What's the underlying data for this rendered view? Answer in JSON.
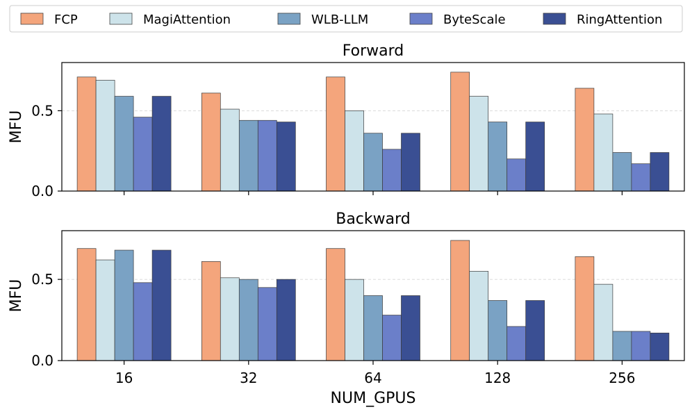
{
  "chart_data": {
    "type": "bar",
    "categories": [
      "16",
      "32",
      "64",
      "128",
      "256"
    ],
    "xlabel": "NUM_GPUS",
    "legend": {
      "placement": "top",
      "entries": [
        "FCP",
        "MagiAttention",
        "WLB-LLM",
        "ByteScale",
        "RingAttention"
      ]
    },
    "colors": [
      "#f4a57c",
      "#cde3ea",
      "#7aa2c4",
      "#6b7fc9",
      "#3a4f93"
    ],
    "panels": [
      {
        "title": "Forward",
        "ylabel": "MFU",
        "ylim": [
          0,
          0.8
        ],
        "yticks": [
          "0.0",
          "0.5"
        ],
        "grid": "horizontal dashed",
        "series": [
          {
            "name": "FCP",
            "values": [
              0.71,
              0.61,
              0.71,
              0.74,
              0.64
            ]
          },
          {
            "name": "MagiAttention",
            "values": [
              0.69,
              0.51,
              0.5,
              0.59,
              0.48
            ]
          },
          {
            "name": "WLB-LLM",
            "values": [
              0.59,
              0.44,
              0.36,
              0.43,
              0.24
            ]
          },
          {
            "name": "ByteScale",
            "values": [
              0.46,
              0.44,
              0.26,
              0.2,
              0.17
            ]
          },
          {
            "name": "RingAttention",
            "values": [
              0.59,
              0.43,
              0.36,
              0.43,
              0.24
            ]
          }
        ]
      },
      {
        "title": "Backward",
        "ylabel": "MFU",
        "ylim": [
          0,
          0.8
        ],
        "yticks": [
          "0.0",
          "0.5"
        ],
        "grid": "horizontal dashed",
        "series": [
          {
            "name": "FCP",
            "values": [
              0.69,
              0.61,
              0.69,
              0.74,
              0.64
            ]
          },
          {
            "name": "MagiAttention",
            "values": [
              0.62,
              0.51,
              0.5,
              0.55,
              0.47
            ]
          },
          {
            "name": "WLB-LLM",
            "values": [
              0.68,
              0.5,
              0.4,
              0.37,
              0.18
            ]
          },
          {
            "name": "ByteScale",
            "values": [
              0.48,
              0.45,
              0.28,
              0.21,
              0.18
            ]
          },
          {
            "name": "RingAttention",
            "values": [
              0.68,
              0.5,
              0.4,
              0.37,
              0.17
            ]
          }
        ]
      }
    ]
  }
}
